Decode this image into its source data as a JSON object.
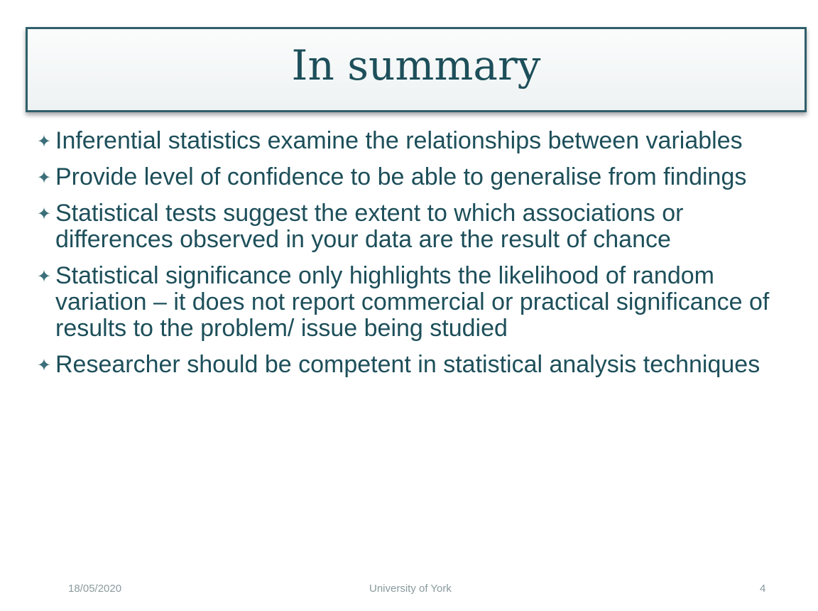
{
  "slide": {
    "title": "In summary",
    "bullet_glyph": "✦",
    "bullets": [
      {
        "text": "Inferential statistics examine the relationships between variables"
      },
      {
        "text": "Provide level of confidence to be able to generalise from findings"
      },
      {
        "text": "Statistical tests suggest the extent to which associations or differences observed in your data are the result of chance"
      },
      {
        "text": "Statistical significance only highlights the likelihood of random variation – it does not report commercial or practical significance of results to the problem/ issue being studied"
      },
      {
        "text": "Researcher should be competent in statistical analysis techniques"
      }
    ]
  },
  "footer": {
    "date": "18/05/2020",
    "organization": "University  of York",
    "page_number": "4"
  },
  "colors": {
    "text": "#1d4f5a",
    "title_border": "#2f5f6a",
    "footer_text": "#8a9a9e"
  }
}
